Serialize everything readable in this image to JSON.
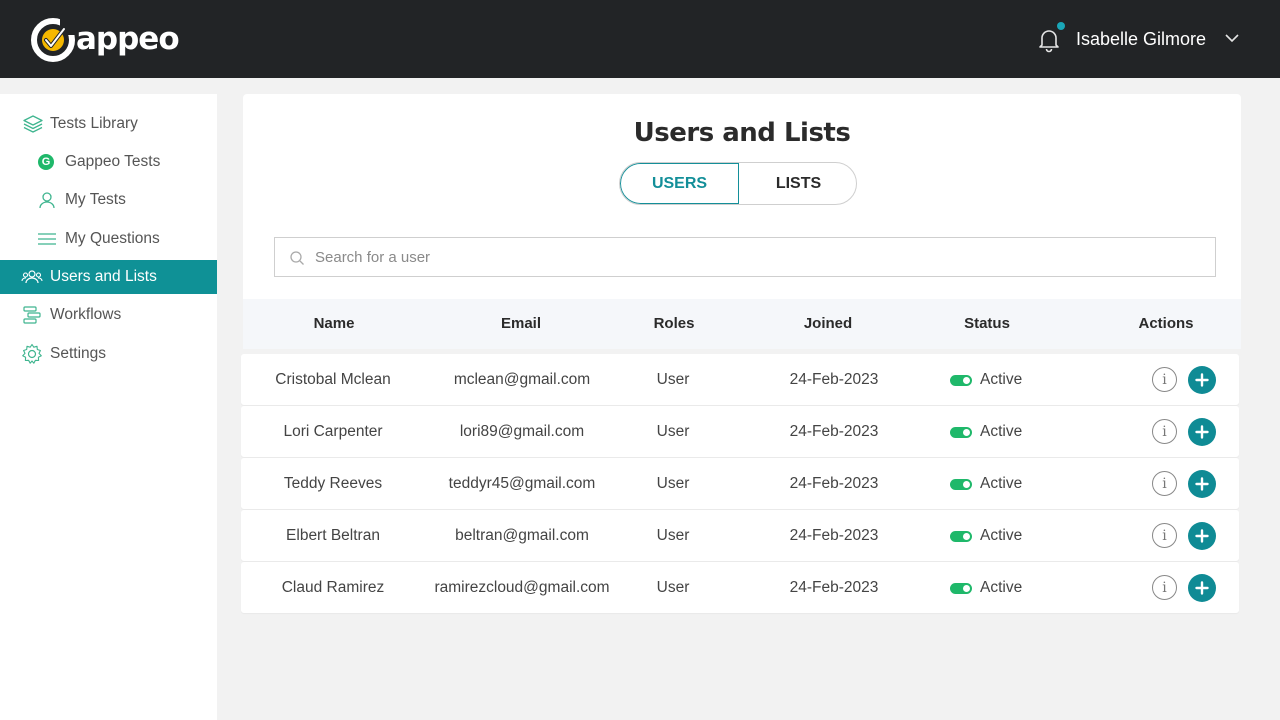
{
  "header": {
    "logo_text": "appeo",
    "user_name": "Isabelle Gilmore"
  },
  "sidebar": {
    "items": [
      {
        "label": "Tests Library",
        "icon": "layers-icon"
      },
      {
        "label": "Gappeo Tests",
        "icon": "g-badge-icon",
        "badge": "G"
      },
      {
        "label": "My Tests",
        "icon": "user-icon"
      },
      {
        "label": "My Questions",
        "icon": "list-icon"
      },
      {
        "label": "Users and Lists",
        "icon": "users-icon",
        "active": true
      },
      {
        "label": "Workflows",
        "icon": "workflow-icon"
      },
      {
        "label": "Settings",
        "icon": "gear-icon"
      }
    ]
  },
  "main": {
    "title": "Users and Lists",
    "tabs": [
      {
        "label": "USERS",
        "active": true
      },
      {
        "label": "LISTS"
      }
    ],
    "search_placeholder": "Search for a user",
    "columns": [
      "Name",
      "Email",
      "Roles",
      "Joined",
      "Status",
      "Actions"
    ],
    "rows": [
      {
        "name": "Cristobal Mclean",
        "email": "mclean@gmail.com",
        "role": "User",
        "joined": "24-Feb-2023",
        "status": "Active"
      },
      {
        "name": "Lori Carpenter",
        "email": "lori89@gmail.com",
        "role": "User",
        "joined": "24-Feb-2023",
        "status": "Active"
      },
      {
        "name": "Teddy Reeves",
        "email": "teddyr45@gmail.com",
        "role": "User",
        "joined": "24-Feb-2023",
        "status": "Active"
      },
      {
        "name": "Elbert Beltran",
        "email": "beltran@gmail.com",
        "role": "User",
        "joined": "24-Feb-2023",
        "status": "Active"
      },
      {
        "name": "Claud Ramirez",
        "email": "ramirezcloud@gmail.com",
        "role": "User",
        "joined": "24-Feb-2023",
        "status": "Active"
      }
    ]
  },
  "colors": {
    "accent": "#0f9196",
    "header_bg": "#222426",
    "active_green": "#1fb86a",
    "logo_yellow": "#f5b800"
  }
}
